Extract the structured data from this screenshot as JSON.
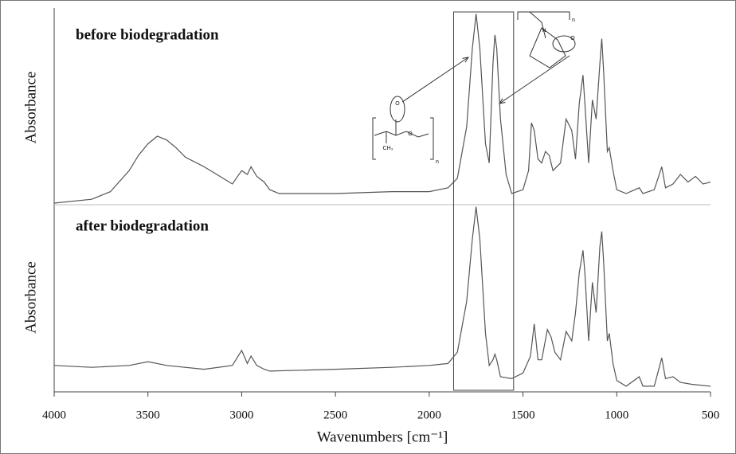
{
  "chart_data": [
    {
      "type": "line",
      "title": "before biodegradation",
      "ylabel": "Absorbance",
      "color": "#555555",
      "xlim": [
        4000,
        500
      ],
      "ylim": [
        0,
        100
      ],
      "highlight": [
        1870,
        1550
      ],
      "annotations": [
        "O",
        "O",
        "CH₃",
        "n",
        "N",
        "n",
        "O"
      ],
      "x": [
        4000,
        3800,
        3700,
        3600,
        3550,
        3500,
        3450,
        3400,
        3350,
        3300,
        3200,
        3100,
        3050,
        3000,
        2970,
        2950,
        2920,
        2880,
        2850,
        2800,
        2500,
        2200,
        2000,
        1900,
        1850,
        1800,
        1770,
        1750,
        1730,
        1700,
        1680,
        1660,
        1650,
        1640,
        1620,
        1590,
        1560,
        1500,
        1470,
        1455,
        1440,
        1420,
        1400,
        1380,
        1360,
        1340,
        1300,
        1270,
        1240,
        1220,
        1200,
        1180,
        1170,
        1150,
        1130,
        1110,
        1090,
        1080,
        1070,
        1050,
        1040,
        1020,
        1000,
        950,
        880,
        860,
        800,
        760,
        740,
        700,
        660,
        620,
        580,
        540,
        500
      ],
      "values": [
        0,
        2,
        6,
        17,
        25,
        31,
        35,
        33,
        29,
        24,
        19,
        13,
        10,
        17,
        15,
        19,
        14,
        11,
        7,
        5,
        5,
        6,
        6,
        8,
        13,
        40,
        81,
        99,
        81,
        31,
        21,
        73,
        88,
        81,
        44,
        15,
        5,
        7,
        17,
        42,
        38,
        23,
        21,
        27,
        25,
        17,
        21,
        44,
        38,
        23,
        52,
        67,
        52,
        21,
        54,
        44,
        73,
        86,
        69,
        27,
        29,
        17,
        7,
        5,
        8,
        5,
        7,
        19,
        8,
        10,
        15,
        11,
        14,
        10,
        11
      ]
    },
    {
      "type": "line",
      "title": "after biodegradation",
      "ylabel": "Absorbance",
      "xlabel": "Wavenumbers [cm⁻¹]",
      "color": "#555555",
      "xlim": [
        4000,
        500
      ],
      "ylim": [
        0,
        100
      ],
      "xticks": [
        4000,
        3500,
        3000,
        2500,
        2000,
        1500,
        1000,
        500
      ],
      "x": [
        4000,
        3800,
        3600,
        3500,
        3400,
        3200,
        3050,
        3000,
        2970,
        2950,
        2920,
        2880,
        2850,
        2500,
        2200,
        2000,
        1900,
        1850,
        1800,
        1770,
        1750,
        1730,
        1700,
        1680,
        1660,
        1650,
        1640,
        1620,
        1560,
        1500,
        1460,
        1440,
        1420,
        1400,
        1370,
        1350,
        1330,
        1300,
        1270,
        1240,
        1220,
        1200,
        1180,
        1170,
        1150,
        1130,
        1110,
        1090,
        1080,
        1070,
        1050,
        1040,
        1020,
        1000,
        950,
        880,
        860,
        800,
        760,
        740,
        700,
        660,
        600,
        500
      ],
      "values": [
        14,
        13,
        14,
        16,
        14,
        12,
        14,
        22,
        15,
        19,
        14,
        12,
        11,
        12,
        13,
        14,
        15,
        21,
        48,
        81,
        98,
        81,
        31,
        14,
        17,
        20,
        17,
        8,
        7,
        10,
        19,
        36,
        17,
        17,
        33,
        29,
        21,
        17,
        32,
        27,
        42,
        63,
        75,
        63,
        27,
        58,
        42,
        77,
        85,
        69,
        27,
        31,
        15,
        6,
        3,
        8,
        3,
        3,
        18,
        7,
        8,
        5,
        4,
        3
      ]
    }
  ]
}
